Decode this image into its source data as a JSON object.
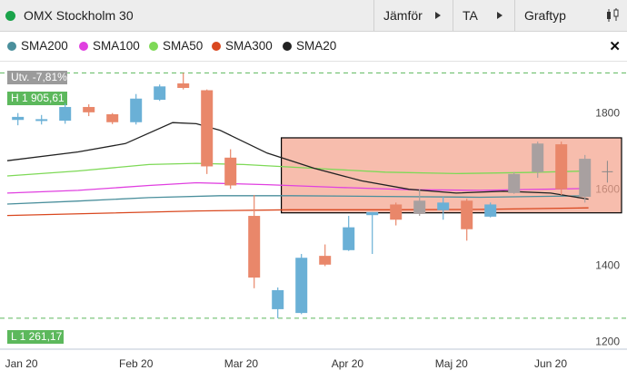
{
  "header": {
    "title": "OMX Stockholm 30",
    "compare_label": "Jämför",
    "ta_label": "TA",
    "charttype_label": "Graftyp",
    "status_color": "#1aa34a"
  },
  "legend": {
    "items": [
      {
        "label": "SMA200",
        "color": "#4a8f9c"
      },
      {
        "label": "SMA100",
        "color": "#e040e0"
      },
      {
        "label": "SMA50",
        "color": "#7ed957"
      },
      {
        "label": "SMA300",
        "color": "#d9481f"
      },
      {
        "label": "SMA20",
        "color": "#222222"
      }
    ],
    "close_icon": "close-icon"
  },
  "chart_data": {
    "type": "candlestick",
    "change_label": "Utv. -7,81%",
    "high_label": "H 1 905,61",
    "low_label": "L 1 261,17",
    "high_value": 1905.61,
    "low_value": 1261.17,
    "y_ticks": [
      1200,
      1400,
      1600,
      1800
    ],
    "x_ticks": [
      "Jan 20",
      "Feb 20",
      "Mar 20",
      "Apr 20",
      "Maj 20",
      "Jun 20"
    ],
    "ylim": [
      1180,
      1935
    ],
    "up_color": "#6ab0d6",
    "down_color": "#e9876a",
    "neutral_color": "#a8a0a0",
    "candles": [
      {
        "x": 0.45,
        "o": 1782,
        "h": 1800,
        "l": 1768,
        "c": 1790
      },
      {
        "x": 1.45,
        "o": 1780,
        "h": 1795,
        "l": 1770,
        "c": 1784
      },
      {
        "x": 2.45,
        "o": 1780,
        "h": 1825,
        "l": 1772,
        "c": 1816
      },
      {
        "x": 3.45,
        "o": 1816,
        "h": 1823,
        "l": 1792,
        "c": 1802
      },
      {
        "x": 4.45,
        "o": 1797,
        "h": 1800,
        "l": 1771,
        "c": 1776
      },
      {
        "x": 5.45,
        "o": 1776,
        "h": 1850,
        "l": 1770,
        "c": 1838
      },
      {
        "x": 6.45,
        "o": 1835,
        "h": 1875,
        "l": 1832,
        "c": 1870
      },
      {
        "x": 7.45,
        "o": 1878,
        "h": 1905.6,
        "l": 1862,
        "c": 1866
      },
      {
        "x": 8.45,
        "o": 1860,
        "h": 1862,
        "l": 1640,
        "c": 1660
      },
      {
        "x": 9.45,
        "o": 1683,
        "h": 1705,
        "l": 1601,
        "c": 1610
      },
      {
        "x": 10.45,
        "o": 1530,
        "h": 1585,
        "l": 1340,
        "c": 1368
      },
      {
        "x": 11.45,
        "o": 1285,
        "h": 1342,
        "l": 1261.2,
        "c": 1335
      },
      {
        "x": 12.45,
        "o": 1275,
        "h": 1430,
        "l": 1272,
        "c": 1420
      },
      {
        "x": 13.45,
        "o": 1425,
        "h": 1455,
        "l": 1398,
        "c": 1402
      },
      {
        "x": 14.45,
        "o": 1440,
        "h": 1530,
        "l": 1438,
        "c": 1500
      },
      {
        "x": 15.45,
        "o": 1532,
        "h": 1540,
        "l": 1430,
        "c": 1540
      },
      {
        "x": 16.45,
        "o": 1560,
        "h": 1565,
        "l": 1505,
        "c": 1520
      },
      {
        "x": 17.45,
        "o": 1535,
        "h": 1600,
        "l": 1530,
        "c": 1570
      },
      {
        "x": 18.45,
        "o": 1545,
        "h": 1580,
        "l": 1520,
        "c": 1565
      },
      {
        "x": 19.45,
        "o": 1570,
        "h": 1575,
        "l": 1465,
        "c": 1495
      },
      {
        "x": 20.45,
        "o": 1528,
        "h": 1565,
        "l": 1526,
        "c": 1560
      },
      {
        "x": 21.45,
        "o": 1590,
        "h": 1645,
        "l": 1588,
        "c": 1640
      },
      {
        "x": 22.45,
        "o": 1645,
        "h": 1725,
        "l": 1630,
        "c": 1720
      },
      {
        "x": 23.45,
        "o": 1718,
        "h": 1725,
        "l": 1585,
        "c": 1600
      },
      {
        "x": 24.45,
        "o": 1580,
        "h": 1690,
        "l": 1565,
        "c": 1680
      }
    ],
    "sma20": [
      [
        0,
        1675
      ],
      [
        3,
        1698
      ],
      [
        5,
        1720
      ],
      [
        7,
        1775
      ],
      [
        8,
        1772
      ],
      [
        9,
        1755
      ],
      [
        11,
        1695
      ],
      [
        13,
        1655
      ],
      [
        15,
        1622
      ],
      [
        17,
        1600
      ],
      [
        19,
        1590
      ],
      [
        21,
        1595
      ],
      [
        23,
        1590
      ],
      [
        24.6,
        1574
      ]
    ],
    "sma50": [
      [
        0,
        1635
      ],
      [
        3,
        1648
      ],
      [
        6,
        1665
      ],
      [
        8,
        1668
      ],
      [
        10,
        1665
      ],
      [
        13,
        1655
      ],
      [
        16,
        1645
      ],
      [
        19,
        1641
      ],
      [
        22,
        1644
      ],
      [
        24.6,
        1648
      ]
    ],
    "sma100": [
      [
        0,
        1590
      ],
      [
        3,
        1597
      ],
      [
        6,
        1610
      ],
      [
        8,
        1617
      ],
      [
        11,
        1612
      ],
      [
        14,
        1605
      ],
      [
        17,
        1599
      ],
      [
        20,
        1597
      ],
      [
        24.6,
        1602
      ]
    ],
    "sma200": [
      [
        0,
        1561
      ],
      [
        3,
        1569
      ],
      [
        6,
        1578
      ],
      [
        9,
        1583
      ],
      [
        12,
        1583
      ],
      [
        16,
        1581
      ],
      [
        20,
        1579
      ],
      [
        24.6,
        1583
      ]
    ],
    "sma300": [
      [
        0,
        1531
      ],
      [
        4,
        1537
      ],
      [
        8,
        1543
      ],
      [
        12,
        1546
      ],
      [
        16,
        1546
      ],
      [
        20,
        1547
      ],
      [
        24.6,
        1551
      ]
    ],
    "highlight_box": {
      "x0": 11.6,
      "x1": 26.0,
      "y0": 1538,
      "y1": 1735
    },
    "cursor_x": 25.4,
    "cursor_y": 1646
  }
}
